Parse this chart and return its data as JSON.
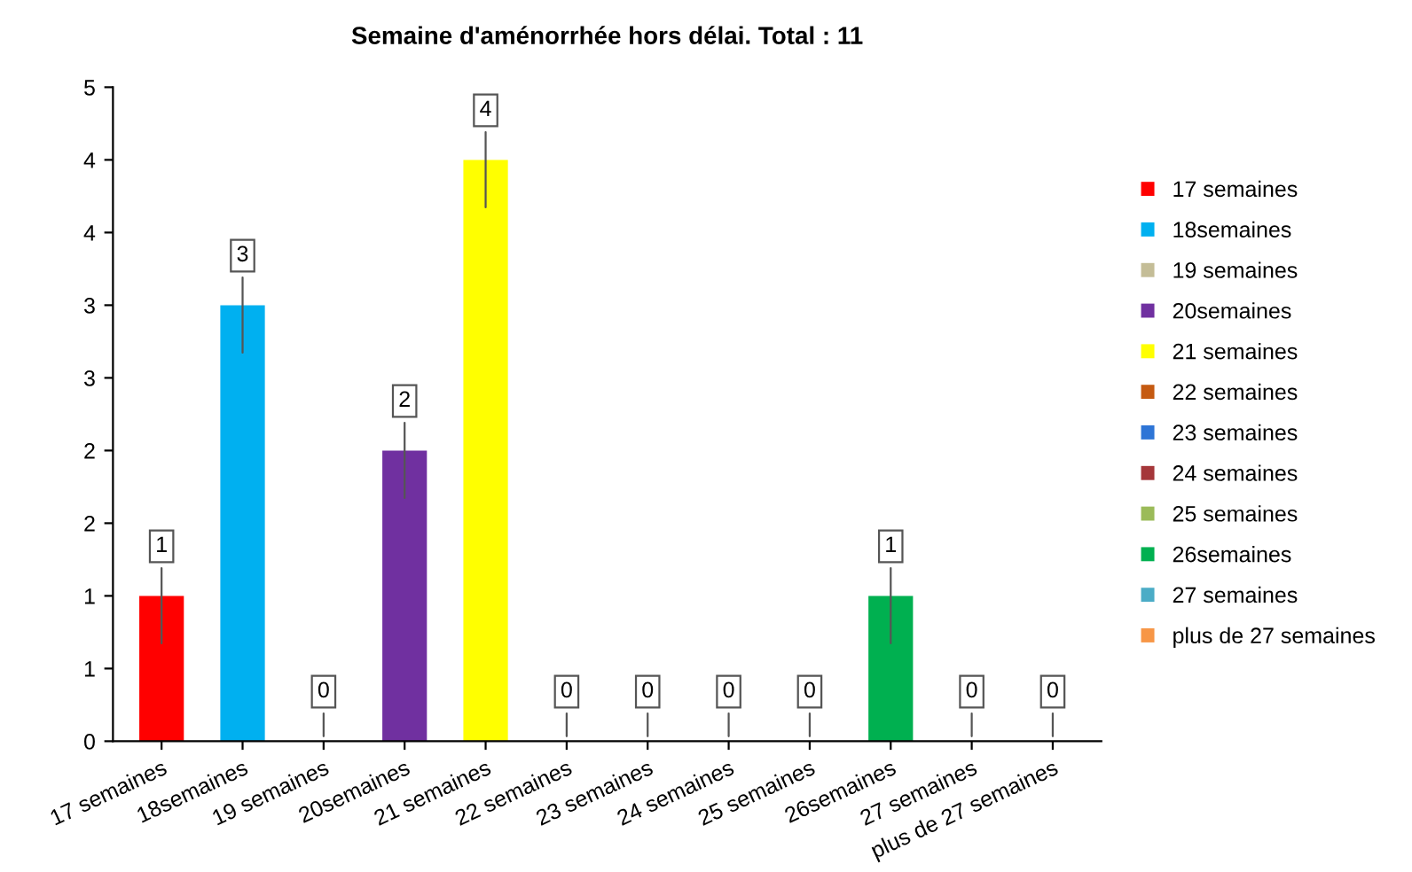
{
  "chart_data": {
    "type": "bar",
    "title": "Semaine d'aménorrhée hors délai. Total : 11",
    "categories": [
      "17 semaines",
      "18semaines",
      "19 semaines",
      "20semaines",
      "21 semaines",
      "22 semaines",
      "23 semaines",
      "24 semaines",
      "25 semaines",
      "26semaines",
      "27 semaines",
      "plus de 27 semaines"
    ],
    "series": [
      {
        "name": "17 semaines",
        "color": "#ff0000",
        "values": [
          1,
          null,
          null,
          null,
          null,
          null,
          null,
          null,
          null,
          null,
          null,
          null
        ]
      },
      {
        "name": "18semaines",
        "color": "#00b0f0",
        "values": [
          null,
          3,
          null,
          null,
          null,
          null,
          null,
          null,
          null,
          null,
          null,
          null
        ]
      },
      {
        "name": "19 semaines",
        "color": "#c4bd97",
        "values": [
          null,
          null,
          0,
          null,
          null,
          null,
          null,
          null,
          null,
          null,
          null,
          null
        ]
      },
      {
        "name": "20semaines",
        "color": "#7030a0",
        "values": [
          null,
          null,
          null,
          2,
          null,
          null,
          null,
          null,
          null,
          null,
          null,
          null
        ]
      },
      {
        "name": "21 semaines",
        "color": "#ffff00",
        "values": [
          null,
          null,
          null,
          null,
          4,
          null,
          null,
          null,
          null,
          null,
          null,
          null
        ]
      },
      {
        "name": "22 semaines",
        "color": "#c55a11",
        "values": [
          null,
          null,
          null,
          null,
          null,
          0,
          null,
          null,
          null,
          null,
          null,
          null
        ]
      },
      {
        "name": "23 semaines",
        "color": "#2e75d6",
        "values": [
          null,
          null,
          null,
          null,
          null,
          null,
          0,
          null,
          null,
          null,
          null,
          null
        ]
      },
      {
        "name": "24 semaines",
        "color": "#a5373a",
        "values": [
          null,
          null,
          null,
          null,
          null,
          null,
          null,
          0,
          null,
          null,
          null,
          null
        ]
      },
      {
        "name": "25 semaines",
        "color": "#9bbb59",
        "values": [
          null,
          null,
          null,
          null,
          null,
          null,
          null,
          null,
          0,
          null,
          null,
          null
        ]
      },
      {
        "name": "26semaines",
        "color": "#00b050",
        "values": [
          null,
          null,
          null,
          null,
          null,
          null,
          null,
          null,
          null,
          1,
          null,
          null
        ]
      },
      {
        "name": "27 semaines",
        "color": "#4bacc6",
        "values": [
          null,
          null,
          null,
          null,
          null,
          null,
          null,
          null,
          null,
          null,
          0,
          null
        ]
      },
      {
        "name": "plus de 27 semaines",
        "color": "#f79646",
        "values": [
          null,
          null,
          null,
          null,
          null,
          null,
          null,
          null,
          null,
          null,
          null,
          0
        ]
      }
    ],
    "ylim": [
      0,
      4.5
    ],
    "yticks": [
      0,
      {
        "value": 0.5,
        "label": "1"
      },
      1,
      {
        "value": 1.5,
        "label": "2"
      },
      2,
      {
        "value": 2.5,
        "label": "3"
      },
      3,
      {
        "value": 3.5,
        "label": "4"
      },
      4,
      {
        "value": 4.5,
        "label": "5"
      }
    ],
    "data_labels": true,
    "legend": "right",
    "grid": false
  }
}
